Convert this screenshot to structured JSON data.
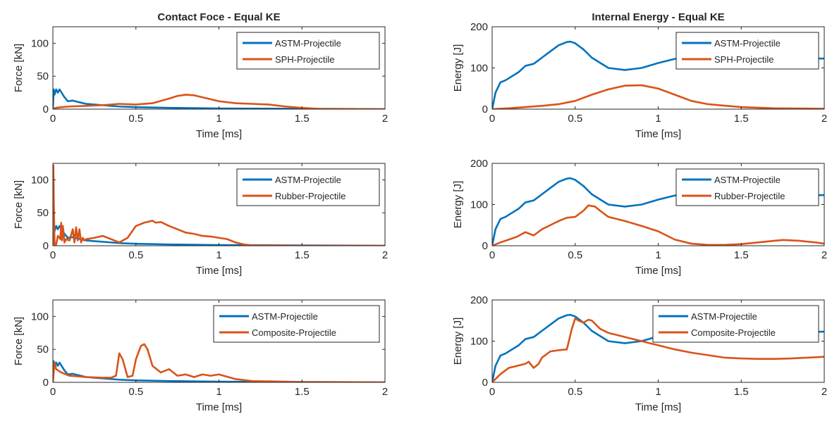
{
  "chart_data": [
    {
      "type": "line",
      "title": "Contact Foce - Equal KE",
      "xlabel": "Time [ms]",
      "ylabel": "Force [kN]",
      "xlim": [
        0,
        2
      ],
      "ylim": [
        0,
        125
      ],
      "xticks": [
        "0",
        "0.5",
        "1",
        "1.5",
        "2"
      ],
      "yticks": [
        "0",
        "50",
        "100"
      ],
      "legend": "top-right",
      "grid": false,
      "series": [
        {
          "name": "ASTM-Projectile",
          "color": "#0072BD",
          "x": [
            0,
            0.005,
            0.01,
            0.02,
            0.03,
            0.04,
            0.05,
            0.07,
            0.09,
            0.12,
            0.15,
            0.2,
            0.3,
            0.4,
            0.5,
            0.7,
            1.0,
            1.5,
            2.0
          ],
          "y": [
            0,
            30,
            22,
            30,
            25,
            30,
            26,
            18,
            12,
            13,
            11,
            8,
            6,
            4,
            3,
            2,
            1,
            0.5,
            0
          ]
        },
        {
          "name": "SPH-Projectile",
          "color": "#D95319",
          "x": [
            0,
            0.02,
            0.05,
            0.1,
            0.2,
            0.3,
            0.4,
            0.5,
            0.6,
            0.7,
            0.75,
            0.8,
            0.85,
            0.9,
            1.0,
            1.1,
            1.2,
            1.3,
            1.4,
            1.5,
            1.6,
            2.0
          ],
          "y": [
            0,
            2,
            3,
            4,
            5,
            6,
            8,
            7,
            9,
            16,
            20,
            22,
            21,
            18,
            12,
            9,
            8,
            7,
            4,
            2,
            0.5,
            0
          ]
        }
      ]
    },
    {
      "type": "line",
      "title": "Internal Energy - Equal KE",
      "xlabel": "Time [ms]",
      "ylabel": "Energy [J]",
      "xlim": [
        0,
        2
      ],
      "ylim": [
        0,
        200
      ],
      "xticks": [
        "0",
        "0.5",
        "1",
        "1.5",
        "2"
      ],
      "yticks": [
        "0",
        "100",
        "200"
      ],
      "legend": "top-right",
      "grid": false,
      "series": [
        {
          "name": "ASTM-Projectile",
          "color": "#0072BD",
          "x": [
            0,
            0.02,
            0.05,
            0.08,
            0.12,
            0.16,
            0.2,
            0.25,
            0.3,
            0.35,
            0.4,
            0.45,
            0.47,
            0.5,
            0.55,
            0.6,
            0.7,
            0.8,
            0.9,
            1.0,
            1.1,
            1.2,
            1.3,
            1.5,
            1.8,
            2.0
          ],
          "y": [
            0,
            40,
            65,
            70,
            80,
            90,
            105,
            110,
            125,
            140,
            155,
            163,
            164,
            160,
            145,
            125,
            100,
            95,
            100,
            112,
            122,
            126,
            125,
            122,
            122,
            123
          ]
        },
        {
          "name": "SPH-Projectile",
          "color": "#D95319",
          "x": [
            0,
            0.1,
            0.2,
            0.3,
            0.4,
            0.5,
            0.6,
            0.7,
            0.8,
            0.9,
            1.0,
            1.1,
            1.2,
            1.3,
            1.5,
            1.7,
            2.0
          ],
          "y": [
            0,
            2,
            5,
            8,
            12,
            20,
            35,
            48,
            57,
            58,
            50,
            35,
            20,
            12,
            5,
            2,
            1
          ]
        }
      ]
    },
    {
      "type": "line",
      "title": "",
      "xlabel": "Time [ms]",
      "ylabel": "Force [kN]",
      "xlim": [
        0,
        2
      ],
      "ylim": [
        0,
        125
      ],
      "xticks": [
        "0",
        "0.5",
        "1",
        "1.5",
        "2"
      ],
      "yticks": [
        "0",
        "50",
        "100"
      ],
      "legend": "top-right",
      "grid": false,
      "series": [
        {
          "name": "ASTM-Projectile",
          "color": "#0072BD",
          "x": [
            0,
            0.005,
            0.01,
            0.02,
            0.03,
            0.04,
            0.05,
            0.07,
            0.09,
            0.12,
            0.15,
            0.2,
            0.3,
            0.4,
            0.5,
            0.7,
            1.0,
            1.5,
            2.0
          ],
          "y": [
            0,
            30,
            22,
            30,
            25,
            30,
            26,
            18,
            12,
            13,
            11,
            8,
            6,
            4,
            3,
            2,
            1,
            0.5,
            0
          ]
        },
        {
          "name": "Rubber-Projectile",
          "color": "#D95319",
          "x": [
            0,
            0.003,
            0.006,
            0.01,
            0.015,
            0.02,
            0.03,
            0.045,
            0.05,
            0.055,
            0.06,
            0.07,
            0.08,
            0.1,
            0.12,
            0.13,
            0.14,
            0.15,
            0.16,
            0.17,
            0.18,
            0.19,
            0.2,
            0.25,
            0.3,
            0.35,
            0.4,
            0.45,
            0.5,
            0.55,
            0.6,
            0.62,
            0.65,
            0.7,
            0.75,
            0.8,
            0.85,
            0.9,
            0.95,
            1.0,
            1.05,
            1.1,
            1.15,
            1.2,
            1.5,
            2.0
          ],
          "y": [
            0,
            122,
            60,
            5,
            0,
            2,
            15,
            10,
            35,
            8,
            30,
            5,
            10,
            8,
            25,
            5,
            28,
            8,
            25,
            5,
            12,
            8,
            10,
            12,
            15,
            10,
            5,
            12,
            30,
            35,
            38,
            35,
            36,
            30,
            25,
            20,
            18,
            15,
            14,
            12,
            10,
            5,
            2,
            0.5,
            0,
            0
          ]
        }
      ]
    },
    {
      "type": "line",
      "title": "",
      "xlabel": "Time [ms]",
      "ylabel": "Energy [J]",
      "xlim": [
        0,
        2
      ],
      "ylim": [
        0,
        200
      ],
      "xticks": [
        "0",
        "0.5",
        "1",
        "1.5",
        "2"
      ],
      "yticks": [
        "0",
        "100",
        "200"
      ],
      "legend": "top-right",
      "grid": false,
      "series": [
        {
          "name": "ASTM-Projectile",
          "color": "#0072BD",
          "x": [
            0,
            0.02,
            0.05,
            0.08,
            0.12,
            0.16,
            0.2,
            0.25,
            0.3,
            0.35,
            0.4,
            0.45,
            0.47,
            0.5,
            0.55,
            0.6,
            0.7,
            0.8,
            0.9,
            1.0,
            1.1,
            1.2,
            1.3,
            1.5,
            1.8,
            2.0
          ],
          "y": [
            0,
            40,
            65,
            70,
            80,
            90,
            105,
            110,
            125,
            140,
            155,
            163,
            164,
            160,
            145,
            125,
            100,
            95,
            100,
            112,
            122,
            126,
            125,
            122,
            122,
            123
          ]
        },
        {
          "name": "Rubber-Projectile",
          "color": "#D95319",
          "x": [
            0,
            0.05,
            0.1,
            0.15,
            0.2,
            0.25,
            0.3,
            0.35,
            0.4,
            0.45,
            0.5,
            0.55,
            0.58,
            0.62,
            0.65,
            0.7,
            0.8,
            0.9,
            1.0,
            1.1,
            1.2,
            1.3,
            1.4,
            1.5,
            1.6,
            1.7,
            1.75,
            1.85,
            1.95,
            2.0
          ],
          "y": [
            0,
            8,
            15,
            22,
            33,
            25,
            40,
            50,
            60,
            68,
            70,
            85,
            98,
            95,
            85,
            70,
            60,
            48,
            35,
            15,
            5,
            2,
            2,
            4,
            8,
            12,
            14,
            12,
            8,
            5
          ]
        }
      ]
    },
    {
      "type": "line",
      "title": "",
      "xlabel": "Time [ms]",
      "ylabel": "Force [kN]",
      "xlim": [
        0,
        2
      ],
      "ylim": [
        0,
        125
      ],
      "xticks": [
        "0",
        "0.5",
        "1",
        "1.5",
        "2"
      ],
      "yticks": [
        "0",
        "50",
        "100"
      ],
      "legend": "top-right",
      "grid": false,
      "series": [
        {
          "name": "ASTM-Projectile",
          "color": "#0072BD",
          "x": [
            0,
            0.005,
            0.01,
            0.02,
            0.03,
            0.04,
            0.05,
            0.07,
            0.09,
            0.12,
            0.15,
            0.2,
            0.3,
            0.4,
            0.5,
            0.7,
            1.0,
            1.5,
            2.0
          ],
          "y": [
            0,
            32,
            22,
            30,
            25,
            30,
            26,
            18,
            12,
            13,
            11,
            8,
            6,
            4,
            3,
            2,
            1,
            0.5,
            0
          ]
        },
        {
          "name": "Composite-Projectile",
          "color": "#D95319",
          "x": [
            0,
            0.01,
            0.02,
            0.05,
            0.1,
            0.2,
            0.3,
            0.35,
            0.38,
            0.4,
            0.42,
            0.45,
            0.48,
            0.5,
            0.53,
            0.55,
            0.57,
            0.6,
            0.65,
            0.7,
            0.75,
            0.8,
            0.85,
            0.9,
            0.95,
            1.0,
            1.1,
            1.2,
            1.5,
            2.0
          ],
          "y": [
            0,
            30,
            20,
            15,
            10,
            8,
            7,
            7,
            10,
            44,
            35,
            8,
            10,
            35,
            55,
            58,
            50,
            25,
            15,
            20,
            10,
            12,
            8,
            12,
            10,
            12,
            5,
            2,
            0.5,
            0
          ]
        }
      ]
    },
    {
      "type": "line",
      "title": "",
      "xlabel": "Time [ms]",
      "ylabel": "Energy [J]",
      "xlim": [
        0,
        2
      ],
      "ylim": [
        0,
        200
      ],
      "xticks": [
        "0",
        "0.5",
        "1",
        "1.5",
        "2"
      ],
      "yticks": [
        "0",
        "100",
        "200"
      ],
      "legend": "top-right",
      "grid": false,
      "series": [
        {
          "name": "ASTM-Projectile",
          "color": "#0072BD",
          "x": [
            0,
            0.02,
            0.05,
            0.08,
            0.12,
            0.16,
            0.2,
            0.25,
            0.3,
            0.35,
            0.4,
            0.45,
            0.47,
            0.5,
            0.55,
            0.6,
            0.7,
            0.8,
            0.9,
            1.0,
            1.1,
            1.2,
            1.3,
            1.5,
            1.8,
            2.0
          ],
          "y": [
            0,
            40,
            65,
            70,
            80,
            90,
            105,
            110,
            125,
            140,
            155,
            163,
            164,
            160,
            145,
            125,
            100,
            95,
            100,
            112,
            122,
            126,
            125,
            122,
            122,
            123
          ]
        },
        {
          "name": "Composite-Projectile",
          "color": "#D95319",
          "x": [
            0,
            0.05,
            0.1,
            0.15,
            0.2,
            0.22,
            0.25,
            0.28,
            0.3,
            0.35,
            0.4,
            0.45,
            0.48,
            0.5,
            0.52,
            0.55,
            0.58,
            0.6,
            0.65,
            0.7,
            0.8,
            0.9,
            1.0,
            1.1,
            1.2,
            1.3,
            1.4,
            1.5,
            1.6,
            1.7,
            1.8,
            1.9,
            2.0
          ],
          "y": [
            0,
            20,
            35,
            40,
            45,
            50,
            35,
            45,
            60,
            75,
            78,
            80,
            130,
            155,
            150,
            145,
            152,
            150,
            130,
            120,
            110,
            100,
            90,
            80,
            72,
            66,
            60,
            58,
            57,
            57,
            58,
            60,
            62
          ]
        }
      ]
    }
  ]
}
